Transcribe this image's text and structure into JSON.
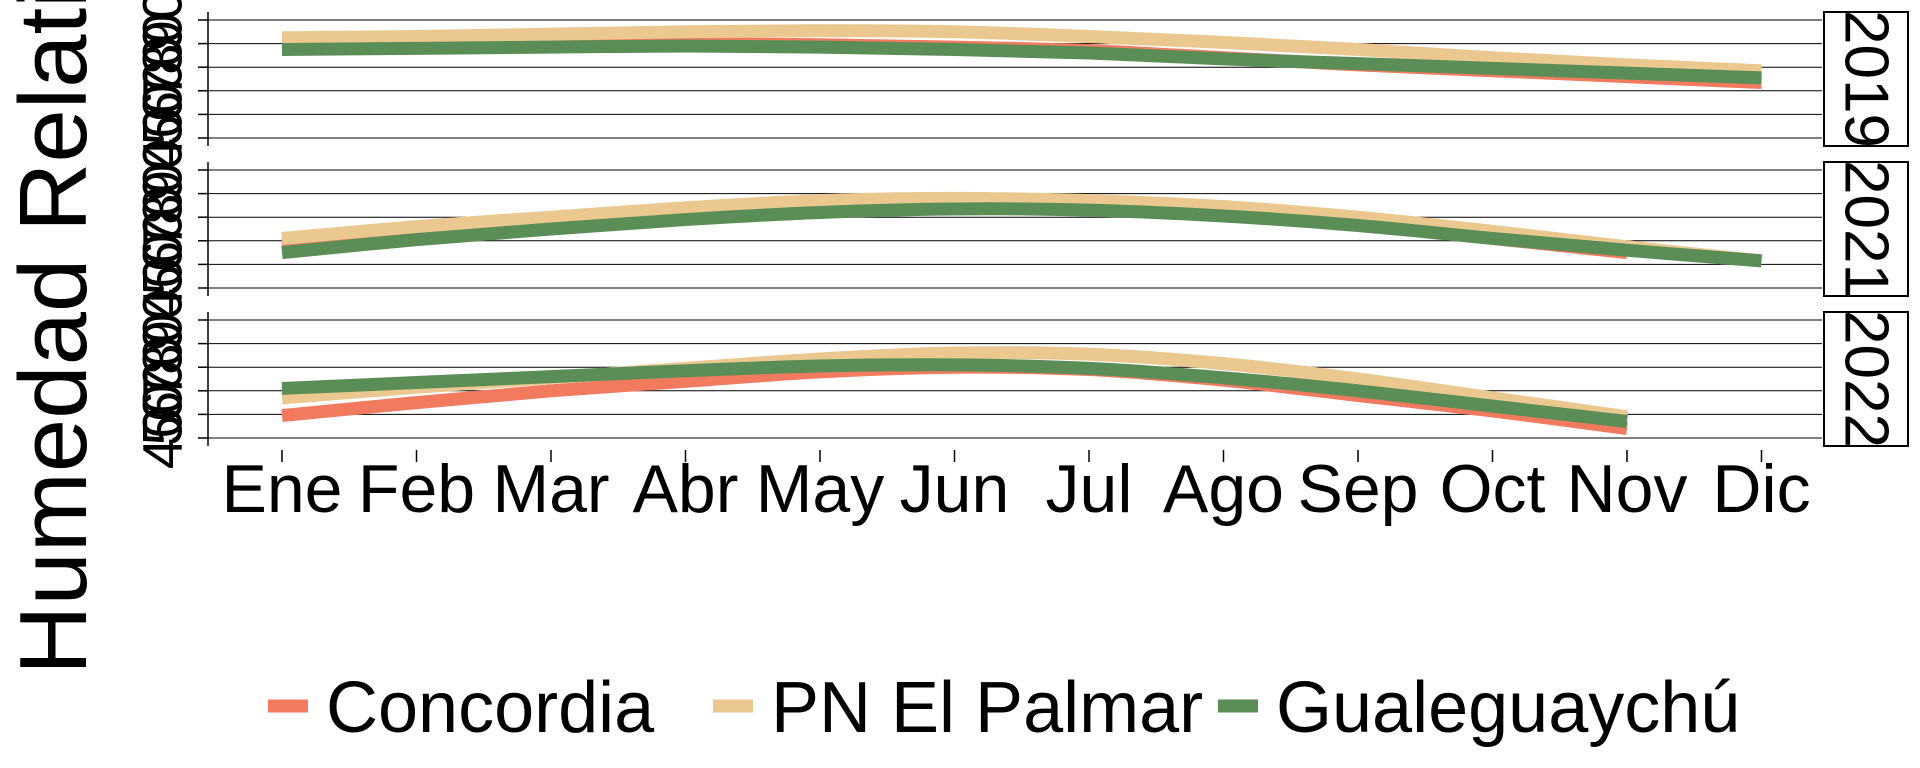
{
  "chart_data": {
    "type": "line",
    "ylabel": "Humedad Relativa",
    "xlabel": "",
    "months": [
      "Ene",
      "Feb",
      "Mar",
      "Abr",
      "May",
      "Jun",
      "Jul",
      "Ago",
      "Sep",
      "Oct",
      "Nov",
      "Dic"
    ],
    "y_ticks": [
      40,
      50,
      60,
      70,
      80,
      90
    ],
    "ylim": [
      40,
      90
    ],
    "grid": true,
    "legend_position": "bottom",
    "colors": {
      "Concordia": "#f27a5e",
      "PN El Palmar": "#ecc891",
      "Gualeguaychú": "#5a8e56"
    },
    "legend": [
      "Concordia",
      "PN El Palmar",
      "Gualeguaychú"
    ],
    "panels": [
      {
        "label": "2019",
        "series": [
          {
            "name": "Concordia",
            "x": [
              "Ene",
              "Feb",
              "Mar",
              "Abr",
              "May",
              "Jun",
              "Jul",
              "Ago",
              "Sep",
              "Oct",
              "Nov",
              "Dic"
            ],
            "values": [
              79,
              79.5,
              80,
              80,
              79.5,
              78.5,
              77,
              74,
              71,
              68.5,
              66,
              63.5
            ]
          },
          {
            "name": "PN El Palmar",
            "x": [
              "Ene",
              "Feb",
              "Mar",
              "Abr",
              "May",
              "Jun",
              "Jul",
              "Ago",
              "Sep",
              "Oct",
              "Nov",
              "Dic"
            ],
            "values": [
              82.5,
              83,
              84,
              85,
              85.5,
              85,
              83,
              80.5,
              77.5,
              74,
              71,
              68.5
            ]
          },
          {
            "name": "Gualeguaychú",
            "x": [
              "Ene",
              "Feb",
              "Mar",
              "Abr",
              "May",
              "Jun",
              "Jul",
              "Ago",
              "Sep",
              "Oct",
              "Nov",
              "Dic"
            ],
            "values": [
              77.5,
              78,
              78.5,
              79,
              78.5,
              77.5,
              76,
              73.5,
              71.5,
              69.5,
              67.5,
              65.5
            ]
          }
        ]
      },
      {
        "label": "2021",
        "series": [
          {
            "name": "Concordia",
            "x": [
              "Ene",
              "Feb",
              "Mar",
              "Abr",
              "May",
              "Jun",
              "Jul",
              "Ago",
              "Sep",
              "Oct",
              "Nov"
            ],
            "values": [
              58,
              63,
              67,
              71,
              74,
              75,
              74,
              71.5,
              67,
              61,
              55
            ]
          },
          {
            "name": "PN El Palmar",
            "x": [
              "Ene",
              "Feb",
              "Mar",
              "Abr",
              "May",
              "Jun",
              "Jul",
              "Ago",
              "Sep",
              "Oct",
              "Nov",
              "Dic"
            ],
            "values": [
              61,
              66,
              70,
              74,
              77,
              78,
              77,
              74.5,
              70,
              64,
              57.5,
              51.5
            ]
          },
          {
            "name": "Gualeguaychú",
            "x": [
              "Ene",
              "Feb",
              "Mar",
              "Abr",
              "May",
              "Jun",
              "Jul",
              "Ago",
              "Sep",
              "Oct",
              "Nov",
              "Dic"
            ],
            "values": [
              55,
              60.5,
              65,
              69,
              72,
              73.5,
              73,
              70.5,
              66.5,
              61,
              56,
              51.5
            ]
          }
        ]
      },
      {
        "label": "2022",
        "series": [
          {
            "name": "Concordia",
            "x": [
              "Ene",
              "Feb",
              "Mar",
              "Abr",
              "May",
              "Jun",
              "Jul",
              "Ago",
              "Sep",
              "Oct",
              "Nov"
            ],
            "values": [
              49.5,
              55,
              60,
              64,
              68,
              70,
              69,
              64.5,
              58,
              51.5,
              44
            ]
          },
          {
            "name": "PN El Palmar",
            "x": [
              "Ene",
              "Feb",
              "Mar",
              "Abr",
              "May",
              "Jun",
              "Jul",
              "Ago",
              "Sep",
              "Oct",
              "Nov"
            ],
            "values": [
              57,
              61.5,
              65.5,
              69.5,
              73.5,
              76,
              75.5,
              71.5,
              65,
              57,
              49
            ]
          },
          {
            "name": "Gualeguaychú",
            "x": [
              "Ene",
              "Feb",
              "Mar",
              "Abr",
              "May",
              "Jun",
              "Jul",
              "Ago",
              "Sep",
              "Oct",
              "Nov"
            ],
            "values": [
              61,
              63.5,
              66,
              68.5,
              70.5,
              71,
              69.5,
              65.5,
              60,
              53.5,
              47
            ]
          }
        ]
      }
    ]
  }
}
